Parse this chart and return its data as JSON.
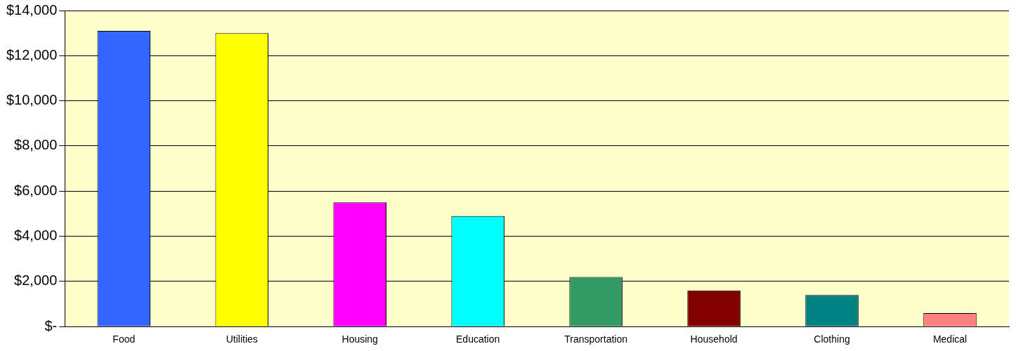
{
  "chart_data": {
    "type": "bar",
    "categories": [
      "Food",
      "Utilities",
      "Housing",
      "Education",
      "Transportation",
      "Household",
      "Clothing",
      "Medical"
    ],
    "values": [
      13100,
      13000,
      5500,
      4900,
      2200,
      1600,
      1400,
      600
    ],
    "colors": [
      "#3366ff",
      "#ffff00",
      "#ff00ff",
      "#00ffff",
      "#339966",
      "#800000",
      "#008080",
      "#ff8080"
    ],
    "ylim": [
      0,
      14000
    ],
    "yticks": [
      {
        "value": 0,
        "label": "$-"
      },
      {
        "value": 2000,
        "label": "$2,000"
      },
      {
        "value": 4000,
        "label": "$4,000"
      },
      {
        "value": 6000,
        "label": "$6,000"
      },
      {
        "value": 8000,
        "label": "$8,000"
      },
      {
        "value": 10000,
        "label": "$10,000"
      },
      {
        "value": 12000,
        "label": "$12,000"
      },
      {
        "value": 14000,
        "label": "$14,000"
      }
    ],
    "grid": "y",
    "legend": false
  }
}
